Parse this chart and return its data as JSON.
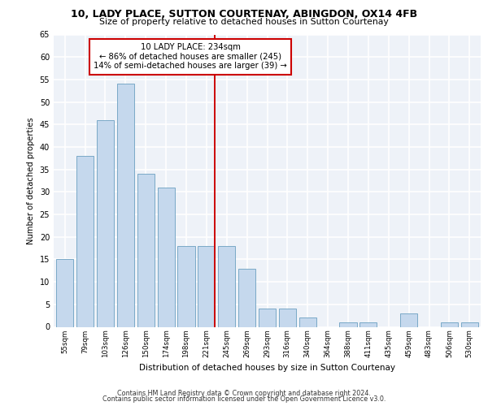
{
  "title_line1": "10, LADY PLACE, SUTTON COURTENAY, ABINGDON, OX14 4FB",
  "title_line2": "Size of property relative to detached houses in Sutton Courtenay",
  "xlabel": "Distribution of detached houses by size in Sutton Courtenay",
  "ylabel": "Number of detached properties",
  "categories": [
    "55sqm",
    "79sqm",
    "103sqm",
    "126sqm",
    "150sqm",
    "174sqm",
    "198sqm",
    "221sqm",
    "245sqm",
    "269sqm",
    "293sqm",
    "316sqm",
    "340sqm",
    "364sqm",
    "388sqm",
    "411sqm",
    "435sqm",
    "459sqm",
    "483sqm",
    "506sqm",
    "530sqm"
  ],
  "values": [
    15,
    38,
    46,
    54,
    34,
    31,
    18,
    18,
    18,
    13,
    4,
    4,
    2,
    0,
    1,
    1,
    0,
    3,
    0,
    1,
    1
  ],
  "bar_color": "#c5d8ed",
  "bar_edgecolor": "#6a9fc0",
  "vline_x_idx": 7,
  "vline_color": "#cc0000",
  "annotation_box_text": "10 LADY PLACE: 234sqm\n← 86% of detached houses are smaller (245)\n14% of semi-detached houses are larger (39) →",
  "annotation_box_color": "#cc0000",
  "ylim": [
    0,
    65
  ],
  "yticks": [
    0,
    5,
    10,
    15,
    20,
    25,
    30,
    35,
    40,
    45,
    50,
    55,
    60,
    65
  ],
  "footer_line1": "Contains HM Land Registry data © Crown copyright and database right 2024.",
  "footer_line2": "Contains public sector information licensed under the Open Government Licence v3.0.",
  "bg_color": "#eef2f8",
  "grid_color": "#ffffff"
}
